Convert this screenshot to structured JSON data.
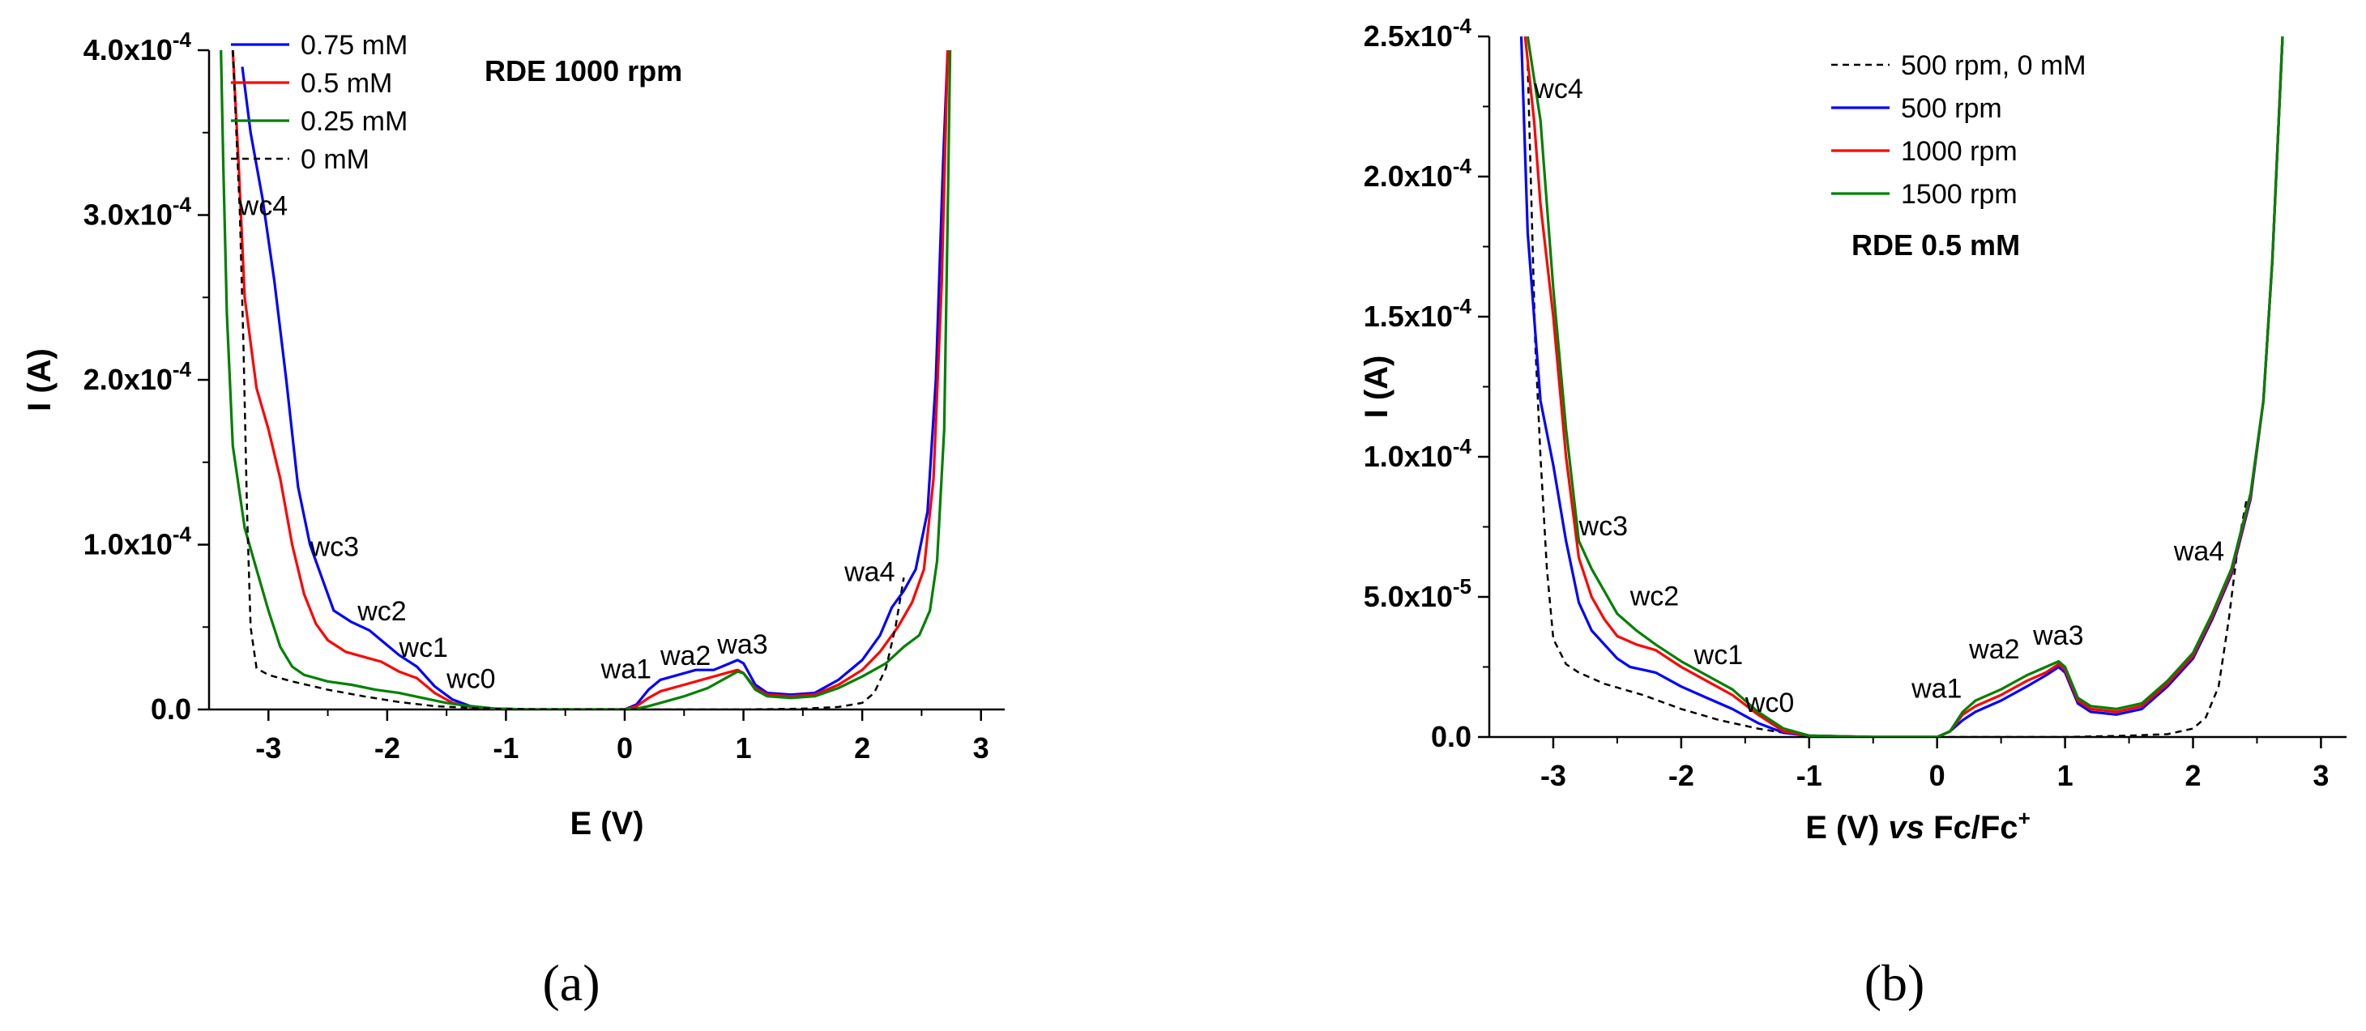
{
  "chart_data": [
    {
      "panel": "(a)",
      "type": "line",
      "title": "",
      "annotation": "RDE 1000 rpm",
      "xlabel": "E (V)",
      "ylabel": "I (A)",
      "xlim": [
        -3.5,
        3.2
      ],
      "ylim": [
        0,
        0.0004
      ],
      "xticks": [
        -3,
        -2,
        -1,
        0,
        1,
        2,
        3
      ],
      "xtick_labels": [
        "-3",
        "-2",
        "-1",
        "0",
        "1",
        "2",
        "3"
      ],
      "yticks": [
        0,
        0.0001,
        0.0002,
        0.0003,
        0.0004
      ],
      "ytick_labels": [
        "0.0",
        "1.0x10",
        "2.0x10",
        "3.0x10",
        "4.0x10"
      ],
      "ytick_exponents": [
        "",
        "-4",
        "-4",
        "-4",
        "-4"
      ],
      "legend_position": "top-left",
      "series": [
        {
          "name": "0.75 mM",
          "color": "#0000ff",
          "dashed": false,
          "x": [
            -3.22,
            -3.15,
            -3.05,
            -2.95,
            -2.85,
            -2.75,
            -2.65,
            -2.55,
            -2.45,
            -2.3,
            -2.15,
            -2.05,
            -1.9,
            -1.75,
            -1.6,
            -1.45,
            -1.3,
            -1.1,
            -0.8,
            -0.4,
            0.0,
            0.1,
            0.2,
            0.3,
            0.45,
            0.6,
            0.75,
            0.85,
            0.95,
            1.0,
            1.1,
            1.2,
            1.4,
            1.6,
            1.8,
            2.0,
            2.15,
            2.25,
            2.35,
            2.45,
            2.55,
            2.62,
            2.68,
            2.72
          ],
          "y": [
            0.00039,
            0.00035,
            0.00031,
            0.00026,
            0.0002,
            0.000135,
            0.0001,
            8e-05,
            6e-05,
            5.3e-05,
            4.8e-05,
            4.2e-05,
            3.3e-05,
            2.6e-05,
            1.4e-05,
            6e-06,
            2e-06,
            5e-07,
            0.0,
            0.0,
            0.0,
            3e-06,
            1.2e-05,
            1.8e-05,
            2.1e-05,
            2.4e-05,
            2.4e-05,
            2.7e-05,
            3e-05,
            2.8e-05,
            1.5e-05,
            1e-05,
            9e-06,
            1e-05,
            1.8e-05,
            3e-05,
            4.5e-05,
            6.2e-05,
            7.2e-05,
            8.5e-05,
            0.00012,
            0.0002,
            0.00033,
            0.0004
          ]
        },
        {
          "name": "0.5 mM",
          "color": "#ff0000",
          "dashed": false,
          "x": [
            -3.3,
            -3.25,
            -3.2,
            -3.1,
            -3.0,
            -2.9,
            -2.8,
            -2.7,
            -2.6,
            -2.5,
            -2.35,
            -2.2,
            -2.05,
            -1.9,
            -1.75,
            -1.6,
            -1.45,
            -1.3,
            -1.1,
            -0.8,
            -0.4,
            0.0,
            0.1,
            0.2,
            0.3,
            0.5,
            0.7,
            0.85,
            0.95,
            1.0,
            1.1,
            1.2,
            1.4,
            1.6,
            1.8,
            2.0,
            2.15,
            2.3,
            2.42,
            2.52,
            2.6,
            2.67,
            2.72
          ],
          "y": [
            0.0004,
            0.00033,
            0.00025,
            0.000195,
            0.00017,
            0.00014,
            0.0001,
            7e-05,
            5.2e-05,
            4.2e-05,
            3.5e-05,
            3.2e-05,
            2.9e-05,
            2.3e-05,
            1.9e-05,
            1e-05,
            4e-06,
            1.5e-06,
            5e-07,
            0.0,
            0.0,
            0.0,
            2e-06,
            7e-06,
            1.1e-05,
            1.5e-05,
            1.9e-05,
            2.2e-05,
            2.4e-05,
            2.2e-05,
            1.3e-05,
            9e-06,
            8e-06,
            9e-06,
            1.5e-05,
            2.4e-05,
            3.5e-05,
            5e-05,
            6.5e-05,
            8.5e-05,
            0.00014,
            0.00026,
            0.0004
          ]
        },
        {
          "name": "0.25 mM",
          "color": "#008000",
          "dashed": false,
          "x": [
            -3.4,
            -3.38,
            -3.35,
            -3.3,
            -3.2,
            -3.1,
            -3.0,
            -2.9,
            -2.8,
            -2.7,
            -2.5,
            -2.3,
            -2.1,
            -1.9,
            -1.7,
            -1.5,
            -1.3,
            -1.1,
            -0.8,
            -0.4,
            0.0,
            0.1,
            0.2,
            0.3,
            0.5,
            0.7,
            0.85,
            0.95,
            1.0,
            1.1,
            1.2,
            1.4,
            1.6,
            1.8,
            2.0,
            2.2,
            2.35,
            2.48,
            2.57,
            2.63,
            2.69,
            2.72,
            2.74
          ],
          "y": [
            0.0004,
            0.00033,
            0.00024,
            0.00016,
            0.00011,
            8.5e-05,
            6e-05,
            3.8e-05,
            2.6e-05,
            2.1e-05,
            1.7e-05,
            1.5e-05,
            1.2e-05,
            1e-05,
            7e-06,
            4e-06,
            2e-06,
            5e-07,
            0.0,
            0.0,
            0.0,
            5e-07,
            2e-06,
            4e-06,
            8e-06,
            1.3e-05,
            1.9e-05,
            2.3e-05,
            2.2e-05,
            1.2e-05,
            8e-06,
            7e-06,
            8e-06,
            1.3e-05,
            2e-05,
            2.8e-05,
            3.8e-05,
            4.5e-05,
            6e-05,
            9e-05,
            0.00017,
            0.0003,
            0.0004
          ]
        },
        {
          "name": "0 mM",
          "color": "#000000",
          "dashed": true,
          "x": [
            -3.3,
            -3.27,
            -3.24,
            -3.21,
            -3.18,
            -3.15,
            -3.1,
            -3.0,
            -2.8,
            -2.5,
            -2.2,
            -1.9,
            -1.6,
            -1.3,
            -1.0,
            -0.5,
            0.0,
            0.5,
            1.0,
            1.5,
            1.8,
            2.0,
            2.1,
            2.2,
            2.28,
            2.35
          ],
          "y": [
            0.0004,
            0.00035,
            0.0003,
            0.00022,
            0.00012,
            5e-05,
            2.5e-05,
            2.1e-05,
            1.7e-05,
            1.2e-05,
            8e-06,
            4.5e-06,
            2e-06,
            1e-06,
            3e-07,
            0.0,
            0.0,
            0.0,
            0.0,
            5e-07,
            1.5e-06,
            4e-06,
            1e-05,
            2.5e-05,
            5e-05,
            8e-05
          ]
        }
      ],
      "peak_labels": [
        {
          "text": "wc4",
          "x": -3.25,
          "y": 0.0003
        },
        {
          "text": "wc3",
          "x": -2.65,
          "y": 9.3e-05
        },
        {
          "text": "wc2",
          "x": -2.25,
          "y": 5.4e-05
        },
        {
          "text": "wc1",
          "x": -1.9,
          "y": 3.2e-05
        },
        {
          "text": "wc0",
          "x": -1.5,
          "y": 1.3e-05
        },
        {
          "text": "wa1",
          "x": -0.2,
          "y": 1.9e-05
        },
        {
          "text": "wa2",
          "x": 0.3,
          "y": 2.7e-05
        },
        {
          "text": "wa3",
          "x": 0.78,
          "y": 3.4e-05
        },
        {
          "text": "wa4",
          "x": 1.85,
          "y": 7.8e-05
        }
      ]
    },
    {
      "panel": "(b)",
      "type": "line",
      "title": "",
      "annotation": "RDE 0.5 mM",
      "xlabel_parts": [
        "E (V) ",
        "vs",
        " Fc/Fc",
        "+"
      ],
      "ylabel": "I (A)",
      "xlim": [
        -3.5,
        3.2
      ],
      "ylim": [
        0,
        0.00025
      ],
      "xticks": [
        -3,
        -2,
        -1,
        0,
        1,
        2,
        3
      ],
      "xtick_labels": [
        "-3",
        "-2",
        "-1",
        "0",
        "1",
        "2",
        "3"
      ],
      "yticks": [
        0,
        5e-05,
        0.0001,
        0.00015,
        0.0002,
        0.00025
      ],
      "ytick_labels": [
        "0.0",
        "5.0x10",
        "1.0x10",
        "1.5x10",
        "2.0x10",
        "2.5x10"
      ],
      "ytick_exponents": [
        "",
        "-5",
        "-4",
        "-4",
        "-4",
        "-4"
      ],
      "legend_position": "top-right",
      "series": [
        {
          "name": "500 rpm, 0 mM",
          "color": "#000000",
          "dashed": true,
          "x": [
            -3.2,
            -3.17,
            -3.14,
            -3.1,
            -3.05,
            -3.0,
            -2.9,
            -2.8,
            -2.6,
            -2.3,
            -2.0,
            -1.7,
            -1.4,
            -1.2,
            -1.0,
            -0.5,
            0.0,
            0.5,
            1.0,
            1.5,
            1.8,
            2.0,
            2.1,
            2.2,
            2.28,
            2.35,
            2.42
          ],
          "y": [
            0.00024,
            0.00019,
            0.00014,
            0.0001,
            6e-05,
            3.5e-05,
            2.6e-05,
            2.3e-05,
            1.9e-05,
            1.5e-05,
            1e-05,
            6e-06,
            3e-06,
            1.5e-06,
            5e-07,
            0.0,
            0.0,
            0.0,
            0.0,
            5e-07,
            1e-06,
            3e-06,
            7e-06,
            1.8e-05,
            4.2e-05,
            6.8e-05,
            8.5e-05
          ]
        },
        {
          "name": "500 rpm",
          "color": "#0000ff",
          "dashed": false,
          "x": [
            -3.25,
            -3.2,
            -3.15,
            -3.1,
            -3.0,
            -2.9,
            -2.8,
            -2.7,
            -2.6,
            -2.5,
            -2.4,
            -2.2,
            -2.0,
            -1.8,
            -1.6,
            -1.4,
            -1.2,
            -1.0,
            -0.5,
            0.0,
            0.1,
            0.2,
            0.3,
            0.5,
            0.7,
            0.85,
            0.95,
            1.0,
            1.1,
            1.2,
            1.4,
            1.6,
            1.8,
            2.0,
            2.15,
            2.3,
            2.45,
            2.55,
            2.62,
            2.67,
            2.7
          ],
          "y": [
            0.00025,
            0.00018,
            0.00015,
            0.00012,
            9.7e-05,
            7e-05,
            4.8e-05,
            3.8e-05,
            3.3e-05,
            2.8e-05,
            2.5e-05,
            2.3e-05,
            1.8e-05,
            1.4e-05,
            1e-05,
            5e-06,
            1.5e-06,
            5e-07,
            0.0,
            0.0,
            2e-06,
            6e-06,
            9e-06,
            1.3e-05,
            1.8e-05,
            2.2e-05,
            2.5e-05,
            2.3e-05,
            1.2e-05,
            9e-06,
            8e-06,
            1e-05,
            1.8e-05,
            2.8e-05,
            4.2e-05,
            5.8e-05,
            8.5e-05,
            0.00012,
            0.00017,
            0.00022,
            0.00025
          ]
        },
        {
          "name": "1000 rpm",
          "color": "#ff0000",
          "dashed": false,
          "x": [
            -3.22,
            -3.15,
            -3.1,
            -3.0,
            -2.9,
            -2.8,
            -2.7,
            -2.6,
            -2.5,
            -2.35,
            -2.2,
            -2.0,
            -1.8,
            -1.6,
            -1.4,
            -1.2,
            -1.0,
            -0.5,
            0.0,
            0.1,
            0.2,
            0.3,
            0.5,
            0.7,
            0.85,
            0.95,
            1.0,
            1.1,
            1.2,
            1.4,
            1.6,
            1.8,
            2.0,
            2.15,
            2.3,
            2.45,
            2.55,
            2.62,
            2.67,
            2.7
          ],
          "y": [
            0.00025,
            0.00022,
            0.00019,
            0.00015,
            0.0001,
            6.4e-05,
            5e-05,
            4.2e-05,
            3.6e-05,
            3.3e-05,
            3.1e-05,
            2.5e-05,
            2e-05,
            1.5e-05,
            8e-06,
            2e-06,
            5e-07,
            0.0,
            0.0,
            2e-06,
            8e-06,
            1.1e-05,
            1.5e-05,
            2e-05,
            2.3e-05,
            2.6e-05,
            2.4e-05,
            1.3e-05,
            1e-05,
            9e-06,
            1.1e-05,
            1.9e-05,
            2.9e-05,
            4.3e-05,
            5.9e-05,
            8.6e-05,
            0.00012,
            0.00017,
            0.00022,
            0.00025
          ]
        },
        {
          "name": "1500 rpm",
          "color": "#008000",
          "dashed": false,
          "x": [
            -3.2,
            -3.1,
            -3.0,
            -2.9,
            -2.8,
            -2.7,
            -2.6,
            -2.5,
            -2.35,
            -2.2,
            -2.0,
            -1.8,
            -1.6,
            -1.4,
            -1.2,
            -1.0,
            -0.5,
            0.0,
            0.1,
            0.2,
            0.3,
            0.5,
            0.7,
            0.85,
            0.95,
            1.0,
            1.1,
            1.2,
            1.4,
            1.6,
            1.8,
            2.0,
            2.15,
            2.3,
            2.45,
            2.55,
            2.62,
            2.67,
            2.7
          ],
          "y": [
            0.00025,
            0.00022,
            0.00016,
            0.00011,
            7e-05,
            6e-05,
            5.2e-05,
            4.4e-05,
            3.8e-05,
            3.3e-05,
            2.7e-05,
            2.2e-05,
            1.7e-05,
            9e-06,
            3e-06,
            5e-07,
            0.0,
            0.0,
            2e-06,
            9e-06,
            1.3e-05,
            1.7e-05,
            2.2e-05,
            2.5e-05,
            2.7e-05,
            2.5e-05,
            1.4e-05,
            1.1e-05,
            1e-05,
            1.2e-05,
            2e-05,
            3e-05,
            4.4e-05,
            6e-05,
            8.7e-05,
            0.00012,
            0.00017,
            0.00022,
            0.00025
          ]
        }
      ],
      "peak_labels": [
        {
          "text": "wc4",
          "x": -3.15,
          "y": 0.000228
        },
        {
          "text": "wc3",
          "x": -2.8,
          "y": 7.2e-05
        },
        {
          "text": "wc2",
          "x": -2.4,
          "y": 4.7e-05
        },
        {
          "text": "wc1",
          "x": -1.9,
          "y": 2.6e-05
        },
        {
          "text": "wc0",
          "x": -1.5,
          "y": 9e-06
        },
        {
          "text": "wa1",
          "x": -0.2,
          "y": 1.4e-05
        },
        {
          "text": "wa2",
          "x": 0.25,
          "y": 2.8e-05
        },
        {
          "text": "wa3",
          "x": 0.75,
          "y": 3.3e-05
        },
        {
          "text": "wa4",
          "x": 1.85,
          "y": 6.3e-05
        }
      ]
    }
  ]
}
